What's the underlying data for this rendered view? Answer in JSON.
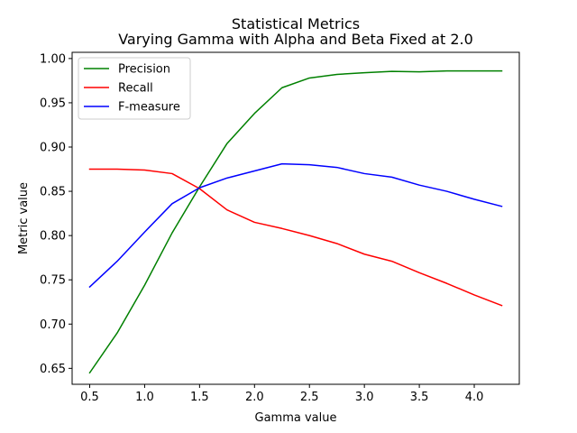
{
  "chart_data": {
    "type": "line",
    "title": "Statistical Metrics",
    "subtitle": "Varying Gamma with Alpha and Beta Fixed at 2.0",
    "xlabel": "Gamma value",
    "ylabel": "Metric value",
    "xlim": [
      0.34,
      4.41
    ],
    "ylim": [
      0.632,
      1.007
    ],
    "xticks": [
      0.5,
      1.0,
      1.5,
      2.0,
      2.5,
      3.0,
      3.5,
      4.0
    ],
    "xtick_labels": [
      "0.5",
      "1.0",
      "1.5",
      "2.0",
      "2.5",
      "3.0",
      "3.5",
      "4.0"
    ],
    "yticks": [
      0.65,
      0.7,
      0.75,
      0.8,
      0.85,
      0.9,
      0.95,
      1.0
    ],
    "ytick_labels": [
      "0.65",
      "0.70",
      "0.75",
      "0.80",
      "0.85",
      "0.90",
      "0.95",
      "1.00"
    ],
    "grid": false,
    "legend_position": "top-left",
    "x": [
      0.5,
      0.75,
      1.0,
      1.25,
      1.5,
      1.75,
      2.0,
      2.25,
      2.5,
      2.75,
      3.0,
      3.25,
      3.5,
      3.75,
      4.0,
      4.25
    ],
    "series": [
      {
        "name": "Precision",
        "color": "#008000",
        "values": [
          0.645,
          0.69,
          0.744,
          0.803,
          0.855,
          0.904,
          0.938,
          0.967,
          0.978,
          0.982,
          0.984,
          0.9855,
          0.985,
          0.986,
          0.986,
          0.986
        ]
      },
      {
        "name": "Recall",
        "color": "#ff0000",
        "values": [
          0.875,
          0.875,
          0.874,
          0.87,
          0.853,
          0.829,
          0.815,
          0.808,
          0.8,
          0.791,
          0.779,
          0.771,
          0.758,
          0.746,
          0.733,
          0.721
        ]
      },
      {
        "name": "F-measure",
        "color": "#0000ff",
        "values": [
          0.742,
          0.771,
          0.804,
          0.836,
          0.854,
          0.865,
          0.873,
          0.881,
          0.88,
          0.877,
          0.87,
          0.866,
          0.857,
          0.85,
          0.841,
          0.833
        ]
      }
    ]
  }
}
